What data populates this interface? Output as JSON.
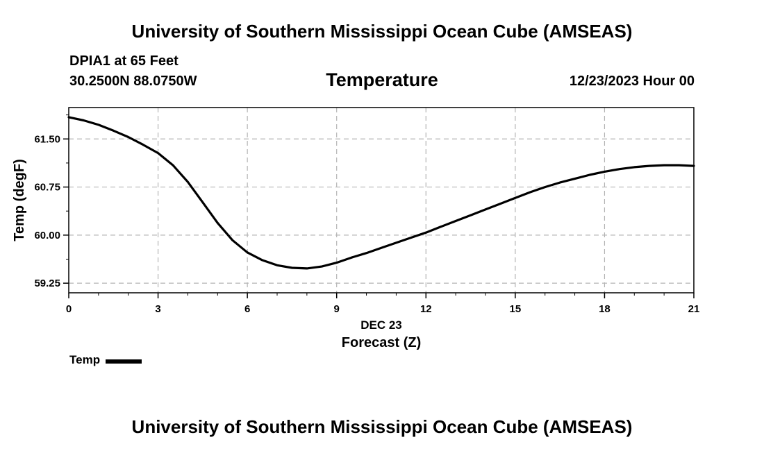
{
  "header": {
    "title": "University of Southern Mississippi Ocean Cube (AMSEAS)",
    "station": "DPIA1 at 65 Feet",
    "coordinates": "30.2500N  88.0750W",
    "parameter": "Temperature",
    "datetime": "12/23/2023 Hour 00"
  },
  "footer": {
    "title": "University of Southern Mississippi Ocean Cube (AMSEAS)"
  },
  "legend": {
    "label": "Temp",
    "color": "#000000"
  },
  "chart_data": {
    "type": "line",
    "title": "Temperature",
    "xlabel": "Forecast (Z)",
    "xlabel_date": "DEC 23",
    "ylabel": "Temp (degF)",
    "xlim": [
      0,
      21
    ],
    "ylim": [
      59.1,
      61.99
    ],
    "x_ticks": [
      0,
      3,
      6,
      9,
      12,
      15,
      18,
      21
    ],
    "y_ticks": [
      59.25,
      60.0,
      60.75,
      61.5
    ],
    "y_tick_labels": [
      "59.25",
      "60.00",
      "60.75",
      "61.50"
    ],
    "grid": true,
    "grid_style": "dashed",
    "series": [
      {
        "name": "Temp",
        "color": "#000000",
        "x": [
          0,
          0.5,
          1,
          1.5,
          2,
          2.5,
          3,
          3.5,
          4,
          4.5,
          5,
          5.5,
          6,
          6.5,
          7,
          7.5,
          8,
          8.5,
          9,
          9.5,
          10,
          10.5,
          11,
          11.5,
          12,
          12.5,
          13,
          13.5,
          14,
          14.5,
          15,
          15.5,
          16,
          16.5,
          17,
          17.5,
          18,
          18.5,
          19,
          19.5,
          20,
          20.5,
          21
        ],
        "values": [
          61.84,
          61.79,
          61.72,
          61.63,
          61.53,
          61.41,
          61.28,
          61.09,
          60.83,
          60.51,
          60.19,
          59.92,
          59.73,
          59.61,
          59.53,
          59.49,
          59.48,
          59.51,
          59.57,
          59.65,
          59.72,
          59.8,
          59.88,
          59.96,
          60.04,
          60.13,
          60.22,
          60.31,
          60.4,
          60.49,
          60.58,
          60.67,
          60.75,
          60.82,
          60.88,
          60.94,
          60.99,
          61.03,
          61.06,
          61.08,
          61.09,
          61.09,
          61.08
        ]
      }
    ]
  }
}
